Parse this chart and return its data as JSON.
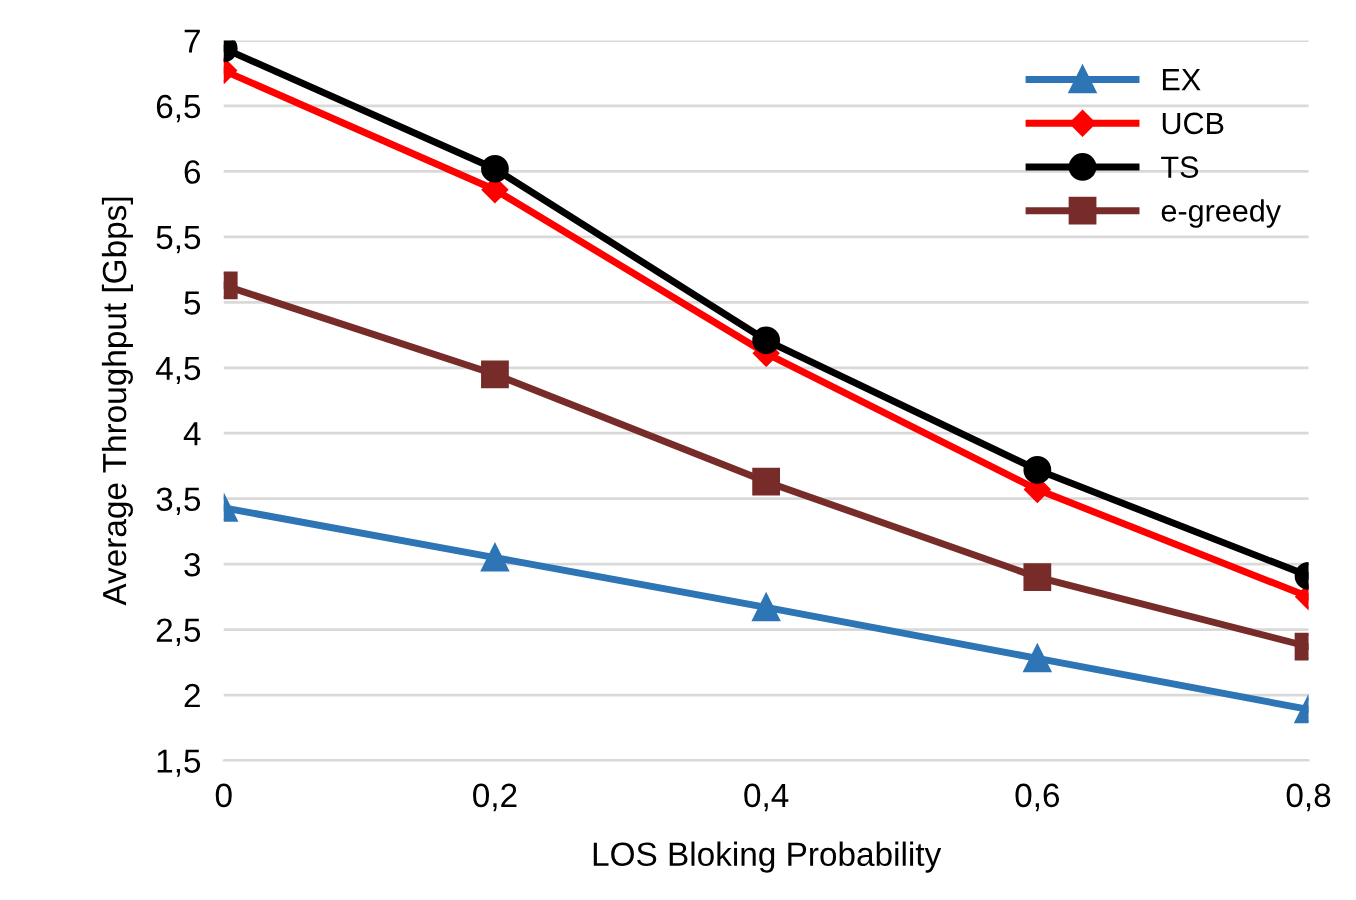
{
  "chart_data": {
    "type": "line",
    "xlabel": "LOS Bloking Probability",
    "ylabel": "Average Throughput [Gbps]",
    "x": [
      0,
      0.2,
      0.4,
      0.6,
      0.8
    ],
    "xlim": [
      0,
      0.8
    ],
    "xticks": [
      {
        "value": 0,
        "label": "0"
      },
      {
        "value": 0.2,
        "label": "0,2"
      },
      {
        "value": 0.4,
        "label": "0,4"
      },
      {
        "value": 0.6,
        "label": "0,6"
      },
      {
        "value": 0.8,
        "label": "0,8"
      }
    ],
    "ylim": [
      1.5,
      7
    ],
    "yticks": [
      {
        "value": 1.5,
        "label": "1,5"
      },
      2,
      {
        "value": 2.5,
        "label": "2,5"
      },
      3,
      {
        "value": 3.5,
        "label": "3,5"
      },
      4,
      {
        "value": 4.5,
        "label": "4,5"
      },
      5,
      {
        "value": 5.5,
        "label": "5,5"
      },
      6,
      {
        "value": 6.5,
        "label": "6,5"
      },
      7
    ],
    "grid": "y",
    "legend": "top right",
    "series": [
      {
        "name": "EX",
        "color": "#2e75b6",
        "marker": "triangle",
        "values": [
          3.43,
          3.05,
          2.67,
          2.28,
          1.89
        ]
      },
      {
        "name": "UCB",
        "color": "#ff0000",
        "marker": "diamond",
        "values": [
          6.77,
          5.86,
          4.61,
          3.57,
          2.75
        ]
      },
      {
        "name": "TS",
        "color": "#000000",
        "marker": "circle",
        "values": [
          6.94,
          6.02,
          4.71,
          3.72,
          2.91
        ]
      },
      {
        "name": "e-greedy",
        "color": "#772c2a",
        "marker": "square",
        "values": [
          5.13,
          4.45,
          3.63,
          2.9,
          2.37
        ]
      }
    ]
  }
}
